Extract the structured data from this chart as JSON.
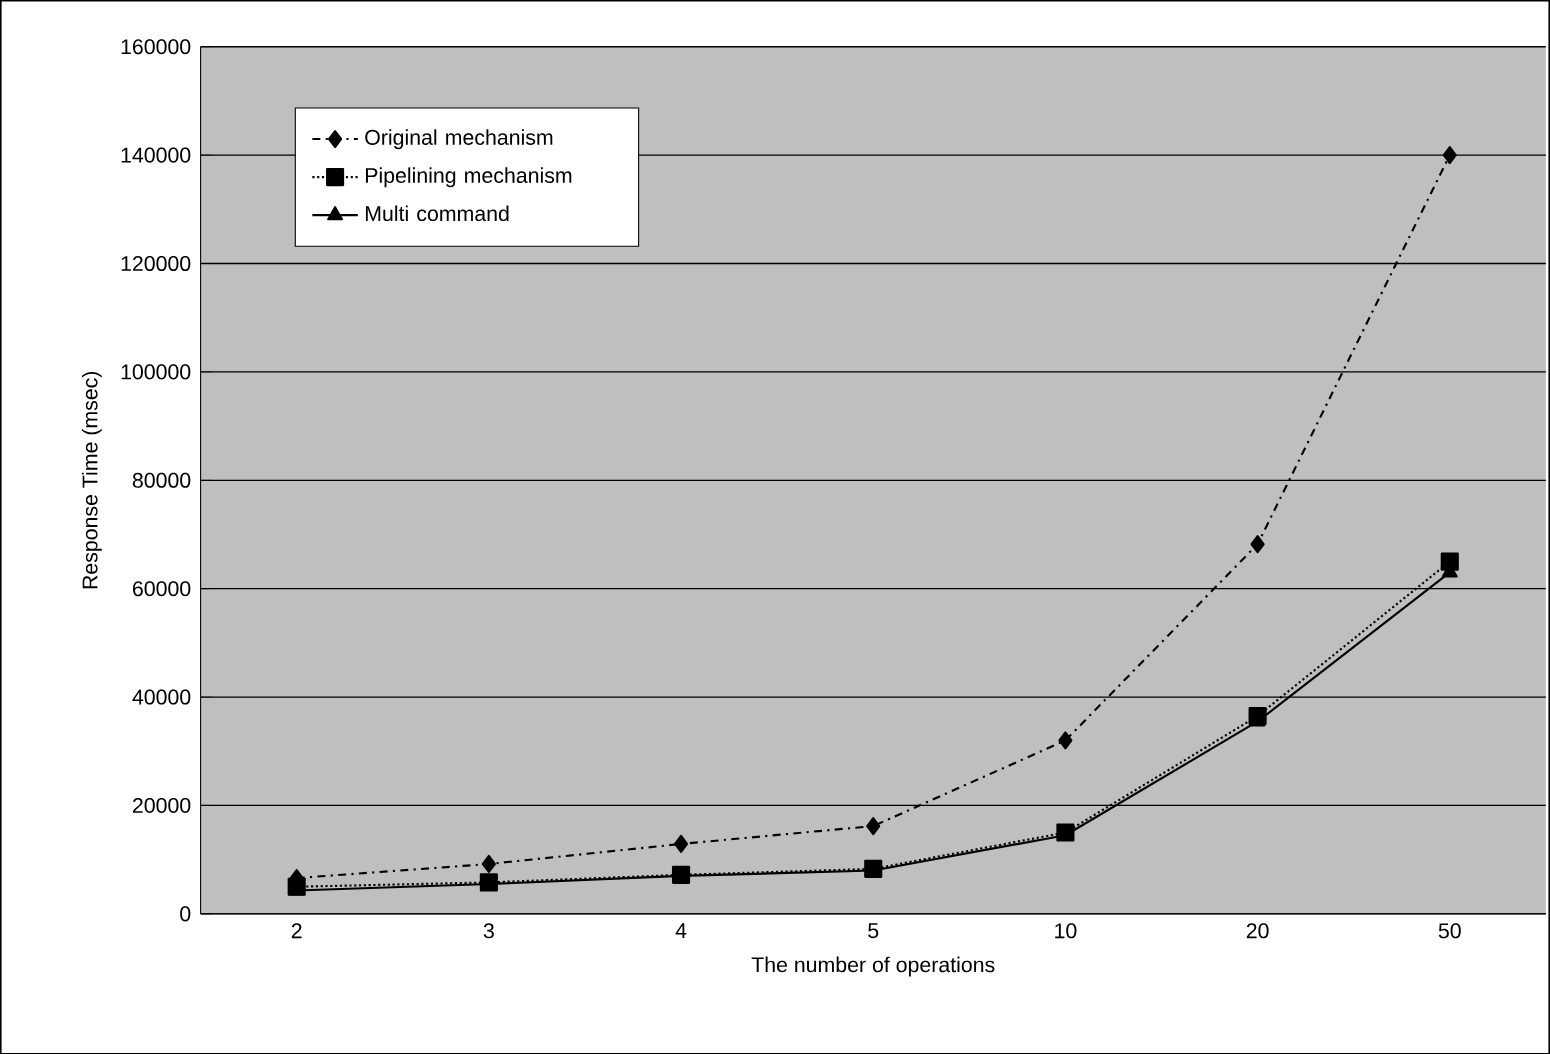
{
  "chart_data": {
    "type": "line",
    "xlabel": "The number of operations",
    "ylabel": "Response Time (msec)",
    "categories": [
      "2",
      "3",
      "4",
      "5",
      "10",
      "20",
      "50"
    ],
    "series": [
      {
        "name": "Original mechanism",
        "color": "#000000",
        "marker": "diamond",
        "line_style": "dashed",
        "values": [
          6600,
          9200,
          12900,
          16200,
          32000,
          68200,
          140000
        ]
      },
      {
        "name": "Pipelining mechanism",
        "color": "#000000",
        "marker": "square",
        "line_style": "dotted",
        "values": [
          5000,
          5800,
          7200,
          8300,
          15000,
          36500,
          65000
        ]
      },
      {
        "name": "Multi command",
        "color": "#000000",
        "marker": "triangle",
        "line_style": "solid",
        "values": [
          4300,
          5500,
          7000,
          8000,
          14500,
          35500,
          63000
        ]
      }
    ],
    "ylim": [
      0,
      160000
    ],
    "yticks": [
      0,
      20000,
      40000,
      60000,
      80000,
      100000,
      120000,
      140000,
      160000
    ],
    "grid": "y",
    "legend": "top left"
  }
}
